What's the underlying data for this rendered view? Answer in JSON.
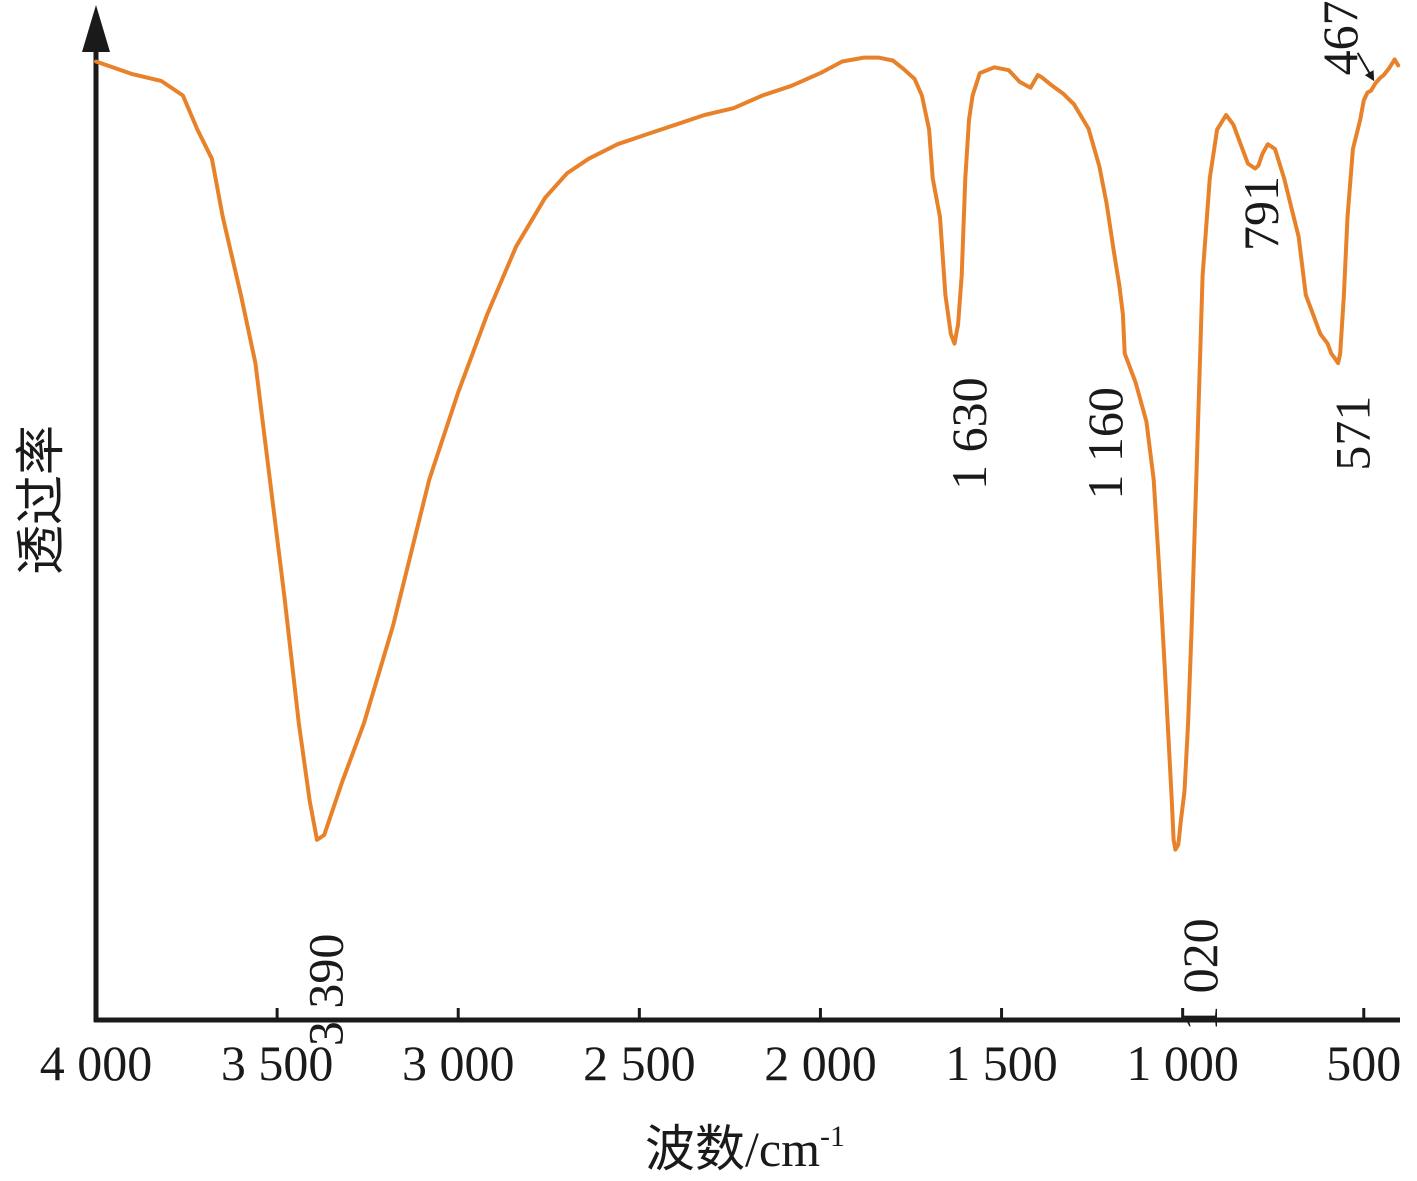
{
  "chart_data": {
    "type": "line",
    "title": "",
    "xlabel": "波数/cm",
    "xlabel_sup": "-1",
    "ylabel": "透过率",
    "xlim": [
      4000,
      400
    ],
    "x_reversed": true,
    "ylim": [
      0,
      100
    ],
    "y_ticks_shown": false,
    "grid": false,
    "legend": "none",
    "x_ticks": [
      {
        "value": 4000,
        "label": "4 000"
      },
      {
        "value": 3500,
        "label": "3 500"
      },
      {
        "value": 3000,
        "label": "3 000"
      },
      {
        "value": 2500,
        "label": "2 500"
      },
      {
        "value": 2000,
        "label": "2 000"
      },
      {
        "value": 1500,
        "label": "1 500"
      },
      {
        "value": 1000,
        "label": "1 000"
      },
      {
        "value": 500,
        "label": "500"
      }
    ],
    "series": [
      {
        "color": "#e8822a",
        "x": [
          4000,
          3900,
          3820,
          3760,
          3720,
          3680,
          3650,
          3600,
          3560,
          3520,
          3480,
          3440,
          3410,
          3390,
          3370,
          3320,
          3260,
          3180,
          3080,
          3000,
          2920,
          2840,
          2760,
          2700,
          2640,
          2560,
          2480,
          2400,
          2320,
          2240,
          2160,
          2080,
          2000,
          1940,
          1880,
          1840,
          1800,
          1770,
          1740,
          1720,
          1700,
          1690,
          1670,
          1655,
          1640,
          1630,
          1620,
          1610,
          1600,
          1590,
          1580,
          1560,
          1520,
          1480,
          1450,
          1420,
          1400,
          1390,
          1380,
          1360,
          1330,
          1300,
          1260,
          1230,
          1210,
          1190,
          1175,
          1165,
          1160,
          1150,
          1130,
          1100,
          1080,
          1065,
          1050,
          1040,
          1030,
          1025,
          1020,
          1012,
          1005,
          995,
          985,
          975,
          960,
          945,
          925,
          905,
          880,
          860,
          840,
          820,
          800,
          791,
          780,
          765,
          745,
          720,
          700,
          680,
          660,
          640,
          620,
          600,
          590,
          580,
          571,
          565,
          555,
          545,
          530,
          510,
          500,
          490,
          480,
          467,
          455,
          445,
          430,
          415,
          405
        ],
        "y": [
          98,
          96.7,
          96,
          94.5,
          91,
          88,
          82,
          74,
          67,
          55,
          43,
          30,
          22,
          18,
          18.5,
          24,
          30,
          40,
          55,
          64,
          72,
          79,
          84,
          86.5,
          88,
          89.5,
          90.5,
          91.5,
          92.5,
          93.2,
          94.5,
          95.5,
          96.8,
          98,
          98.4,
          98.4,
          98.1,
          97.2,
          96.2,
          94.5,
          91,
          86,
          82,
          74,
          70,
          69,
          71,
          76,
          86,
          92,
          94.5,
          96.8,
          97.4,
          97.1,
          95.9,
          95.3,
          96.6,
          96.4,
          96.1,
          95.5,
          94.7,
          93.6,
          91.1,
          87.2,
          83.4,
          78.5,
          75,
          72,
          68,
          67,
          65,
          61,
          55,
          46,
          36,
          29,
          22,
          18,
          17,
          17.5,
          20,
          23,
          30,
          40,
          58,
          76,
          86,
          91,
          92.5,
          91.5,
          89.5,
          87.5,
          87,
          87.3,
          88.5,
          89.5,
          89,
          86,
          83,
          80,
          74,
          72,
          70,
          69,
          68,
          67.5,
          67,
          68,
          74,
          82,
          89,
          92,
          94,
          94.8,
          95,
          95.8,
          96.3,
          96.6,
          97.3,
          98.2,
          97.6
        ]
      }
    ],
    "peak_labels": [
      {
        "x": 3390,
        "y": 18,
        "text": "3 390"
      },
      {
        "x": 1630,
        "y": 69,
        "text": "1 630"
      },
      {
        "x": 1160,
        "y": 68,
        "text": "1 160"
      },
      {
        "x": 1020,
        "y": 17,
        "text": "1 020"
      },
      {
        "x": 791,
        "y": 87,
        "text": "791"
      },
      {
        "x": 571,
        "y": 67,
        "text": "571"
      },
      {
        "x": 467,
        "y": 95.8,
        "text": "467"
      }
    ]
  }
}
